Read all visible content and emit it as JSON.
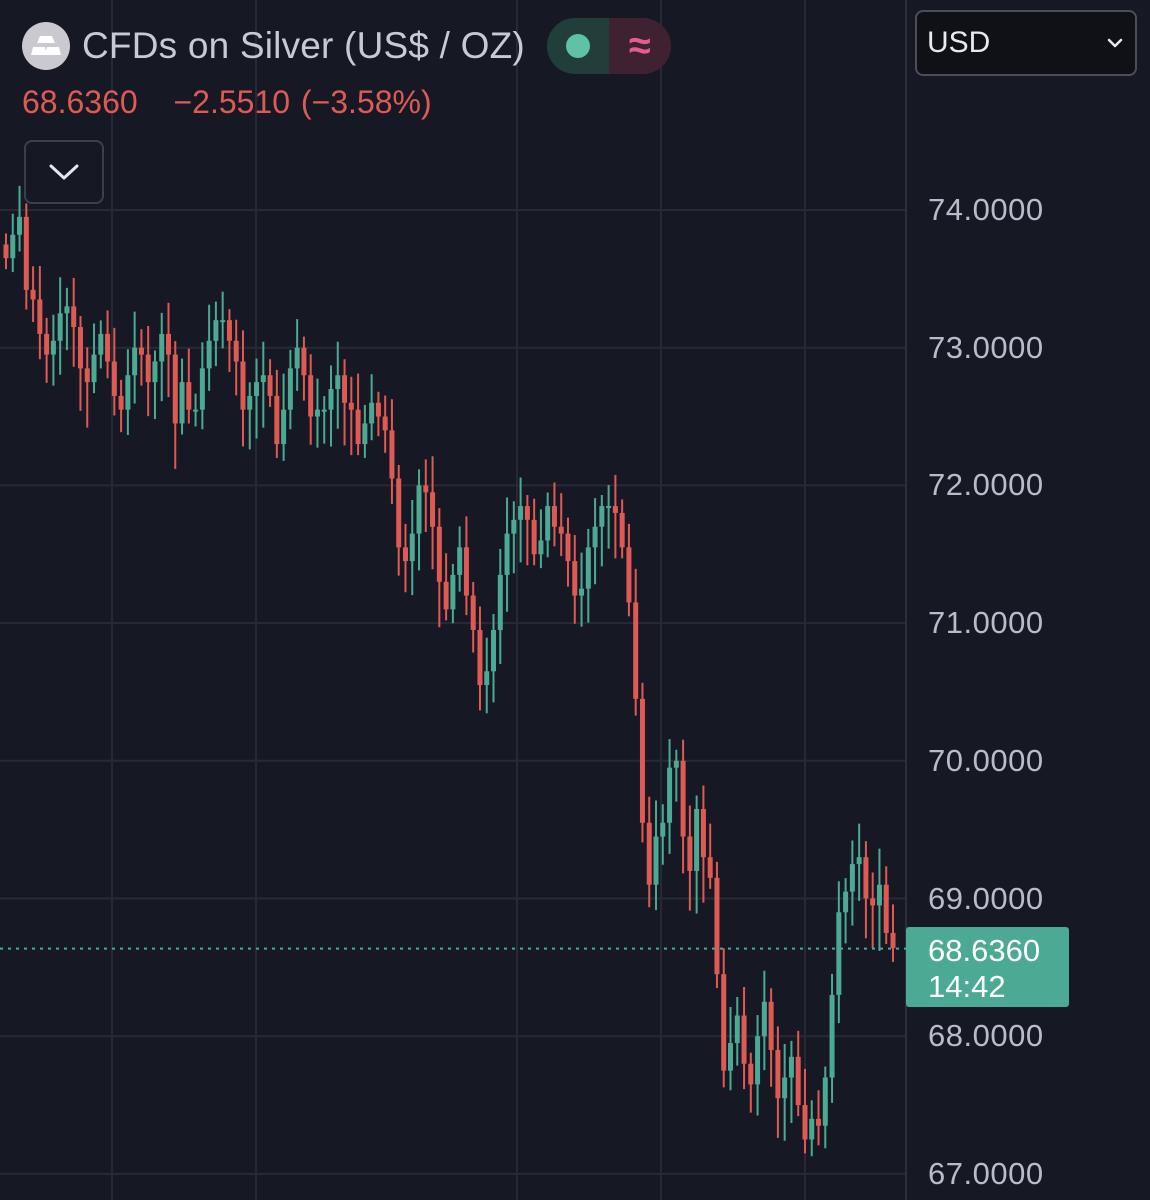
{
  "symbol": {
    "title": "CFDs on Silver (US$ / OZ)",
    "logo_icon": "silver-bars-icon",
    "status_icon": "market-open-dot-icon",
    "status_color": "#5fc2a6",
    "mode_icon": "approx-wave-icon",
    "mode_glyph": "≈"
  },
  "quote": {
    "last": "68.6360",
    "change": "−2.5510",
    "change_pct": "(−3.58%)",
    "color": "#e05a55"
  },
  "currency_select": {
    "value": "USD",
    "icon": "chevron-down-icon"
  },
  "collapse_button_icon": "chevron-down-icon",
  "last_price_label": {
    "price": "68.6360",
    "countdown": "14:42",
    "color": "#4caa94"
  },
  "chart_data": {
    "type": "candlestick",
    "y_axis": {
      "ticks": [
        "74.0000",
        "73.0000",
        "72.0000",
        "71.0000",
        "70.0000",
        "69.0000",
        "68.0000",
        "67.0000"
      ],
      "tick_values": [
        74,
        73,
        72,
        71,
        70,
        69,
        68,
        67
      ],
      "range": [
        66.8,
        74.8
      ]
    },
    "up_color": "#4caa94",
    "down_color": "#e05a55",
    "grid": true,
    "close_series": [
      73.65,
      73.82,
      73.95,
      73.42,
      73.35,
      73.1,
      72.95,
      73.05,
      73.25,
      73.3,
      73.15,
      72.85,
      72.75,
      72.95,
      73.1,
      72.9,
      72.65,
      72.55,
      72.8,
      73.0,
      72.95,
      72.75,
      72.9,
      73.1,
      72.95,
      72.45,
      72.75,
      72.55,
      72.55,
      72.85,
      73.05,
      73.2,
      73.2,
      73.05,
      72.9,
      72.55,
      72.65,
      72.75,
      72.8,
      72.65,
      72.3,
      72.55,
      72.85,
      73.0,
      72.8,
      72.5,
      72.55,
      72.55,
      72.7,
      72.8,
      72.6,
      72.55,
      72.3,
      72.45,
      72.6,
      72.5,
      72.4,
      72.05,
      71.55,
      71.45,
      71.65,
      72.0,
      71.95,
      71.7,
      71.3,
      71.1,
      71.35,
      71.55,
      71.2,
      70.95,
      70.55,
      70.65,
      70.95,
      71.35,
      71.65,
      71.75,
      71.85,
      71.75,
      71.5,
      71.6,
      71.85,
      71.7,
      71.65,
      71.45,
      71.2,
      71.25,
      71.55,
      71.7,
      71.85,
      71.85,
      71.8,
      71.55,
      71.15,
      70.45,
      69.55,
      69.1,
      69.45,
      69.55,
      69.95,
      70.0,
      69.45,
      69.2,
      69.65,
      69.3,
      69.15,
      68.45,
      67.75,
      67.95,
      68.15,
      67.8,
      67.65,
      68.0,
      68.25,
      67.9,
      67.55,
      67.7,
      67.85,
      67.5,
      67.25,
      67.4,
      67.35,
      67.7,
      68.3,
      68.9,
      69.05,
      69.25,
      69.3,
      69.0,
      68.95,
      69.1,
      68.75,
      68.64
    ]
  }
}
